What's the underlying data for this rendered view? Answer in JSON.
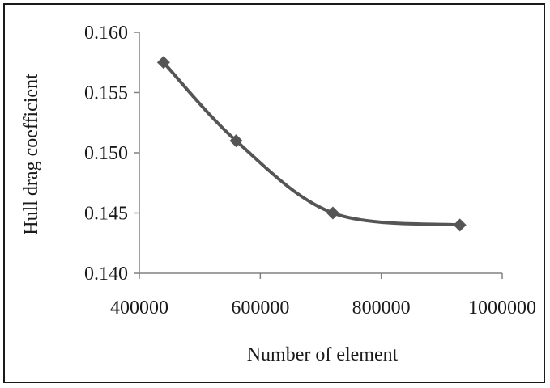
{
  "chart_data": {
    "type": "line",
    "xlabel": "Number of element",
    "ylabel": "Hull drag coefficient",
    "xlim": [
      400000,
      1000000
    ],
    "ylim": [
      0.14,
      0.16
    ],
    "x_ticks": [
      "400000",
      "600000",
      "800000",
      "1000000"
    ],
    "y_ticks": [
      "0.140",
      "0.145",
      "0.150",
      "0.155",
      "0.160"
    ],
    "series": [
      {
        "x": [
          440000,
          560000,
          720000,
          930000
        ],
        "y": [
          0.1575,
          0.151,
          0.145,
          0.144
        ]
      }
    ],
    "grid": false,
    "smooth": true,
    "marker": "diamond",
    "line_color": "#555555"
  }
}
